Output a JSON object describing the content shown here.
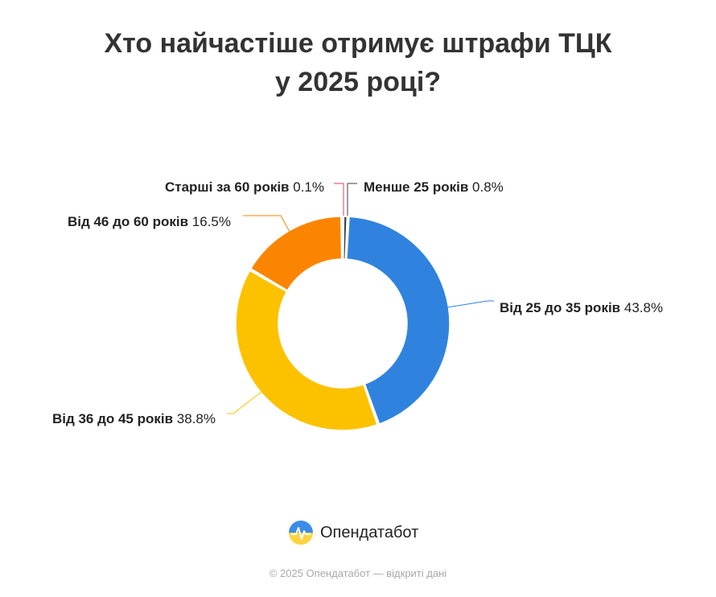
{
  "title_line1": "Хто найчастіше отримує штрафи ТЦК",
  "title_line2": "у 2025 році?",
  "chart_data": {
    "type": "pie",
    "title": "Хто найчастіше отримує штрафи ТЦК у 2025 році?",
    "categories": [
      "Менше 25 років",
      "Від 25 до 35 років",
      "Від 36 до 45 років",
      "Від 46 до 60 років",
      "Старші за 60 років"
    ],
    "values": [
      0.8,
      43.8,
      38.8,
      16.5,
      0.1
    ],
    "value_labels": [
      "0.8%",
      "43.8%",
      "38.8%",
      "16.5%",
      "0.1%"
    ],
    "colors": [
      "#3a3f4a",
      "#2f83de",
      "#fcc200",
      "#fb8500",
      "#e0424f"
    ],
    "donut": true
  },
  "brand": {
    "name": "Опендатабот",
    "icon": "opendatabot-logo-icon"
  },
  "footer": "© 2025 Опендатабот — відкриті дані"
}
